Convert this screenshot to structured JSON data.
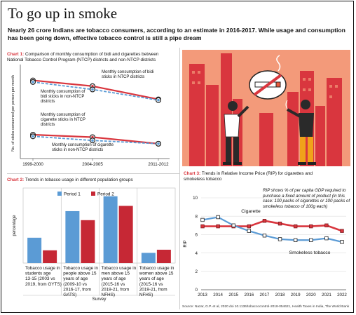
{
  "title": "To go up in smoke",
  "subtitle": "Nearly 26 crore Indians are tobacco consumers, according to an estimate in 2016-2017. While usage and consumption has been going down, effective tobacco control is still a pipe dream",
  "colors": {
    "red": "#d9363e",
    "blue": "#5b9bd5",
    "peach": "#f39a7a"
  },
  "chart1": {
    "label": "Chart 1:",
    "title": "Comparison of monthly consumption of bidi and cigarettes between National Tobacco Control  Program (NTCP) districts and non-NTCP districts"
  },
  "chart2": {
    "label": "Chart 2:",
    "title": "Trends in tobacco usage in different population groups"
  },
  "chart3": {
    "label": "Chart 3:",
    "title": "Trends in Relative Income Price (RIP) for cigarettes and smokeless tobacco",
    "note": "RIP shows % of per capita GDP required to purchase a fixed amount of product (in this case: 100 packs of cigarettes or 100 packs of smokeless tobacco of 100g each)"
  },
  "source": "Source: Nazar, G.P. et al, 2020 doi 10.1136/tobaccocontrol-2018-054621, Health Taxes in India, The World Bank",
  "chart_data": [
    {
      "type": "line",
      "ylabel": "No. of sticks consumed per person per month",
      "categories": [
        "1999-2000",
        "2004-2005",
        "2011-2012"
      ],
      "series": [
        {
          "name": "Monthly consumption of bidi sticks in NTCP districts",
          "values": [
            95,
            88,
            72
          ],
          "color": "#d9363e"
        },
        {
          "name": "Monthly consumption of bidi sticks in non-NTCP districts",
          "values": [
            93,
            84,
            71
          ],
          "color": "#5b9bd5"
        },
        {
          "name": "Monthly consumption of cigarette sticks in NTCP districts",
          "values": [
            29,
            26,
            18
          ],
          "color": "#d9363e"
        },
        {
          "name": "Monthly consumption of cigarette sticks in non-NTCP districts",
          "values": [
            27,
            22,
            18
          ],
          "color": "#5b9bd5"
        }
      ]
    },
    {
      "type": "bar",
      "xlabel": "Survey",
      "ylabel": "percentage",
      "ylim": [
        0,
        50
      ],
      "categories": [
        "Tobacco usage in students age 13-15 (2003 vs 2019, from GYTS)",
        "Tobacco usage in people above 15 years of age (2009-10 vs 2016-17, from GATS)",
        "Tobacco usage in men above 15 years of age (2015-16 vs 2019-21, from NFHS)",
        "Tobacco usage in women above 15 years of age (2015-16 vs 2019-21, from NFHS)"
      ],
      "series": [
        {
          "name": "Period 1",
          "values": [
            16.9,
            34.6,
            44.5,
            6.8
          ],
          "color": "#5b9bd5"
        },
        {
          "name": "Period 2",
          "values": [
            8.5,
            28.6,
            38.1,
            8.9
          ],
          "color": "#c62835"
        }
      ]
    },
    {
      "type": "line",
      "ylabel": "RIP",
      "ylim": [
        0,
        10
      ],
      "yticks": [
        0,
        2,
        4,
        6,
        8,
        10
      ],
      "x": [
        2013,
        2014,
        2015,
        2016,
        2017,
        2018,
        2019,
        2020,
        2021,
        2022
      ],
      "series": [
        {
          "name": "Cigarette",
          "values": [
            6.9,
            6.9,
            6.9,
            6.9,
            7.5,
            7.2,
            6.9,
            6.9,
            7.0,
            6.4
          ],
          "color": "#d9363e"
        },
        {
          "name": "Smokeless tobacco",
          "values": [
            7.6,
            7.9,
            7.0,
            6.4,
            5.9,
            5.5,
            5.4,
            5.4,
            5.6,
            5.2
          ],
          "color": "#5b9bd5"
        }
      ]
    }
  ]
}
